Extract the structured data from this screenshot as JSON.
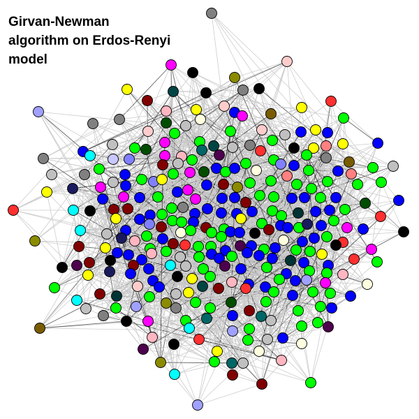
{
  "title_lines": [
    "Girvan-Newman",
    "algorithm on Erdos-Renyi",
    "model"
  ],
  "community_colors": [
    "#00ff00",
    "#0000ff",
    "#808080",
    "#c0c0c0",
    "#ffb6c1",
    "#800000",
    "#00ffff",
    "#ff00ff",
    "#ffff00",
    "#000000",
    "#8b8b00",
    "#ffcccc",
    "#ff3030",
    "#1a1a5e",
    "#003333",
    "#006666",
    "#c8c8ff",
    "#ffffe0",
    "#4d004d",
    "#a0a0ff",
    "#004d00",
    "#8080ff",
    "#ff8080",
    "#7a5c00",
    "#004444"
  ],
  "edge_color_light": "#c8c8c8",
  "edge_color_dark": "#333333"
}
